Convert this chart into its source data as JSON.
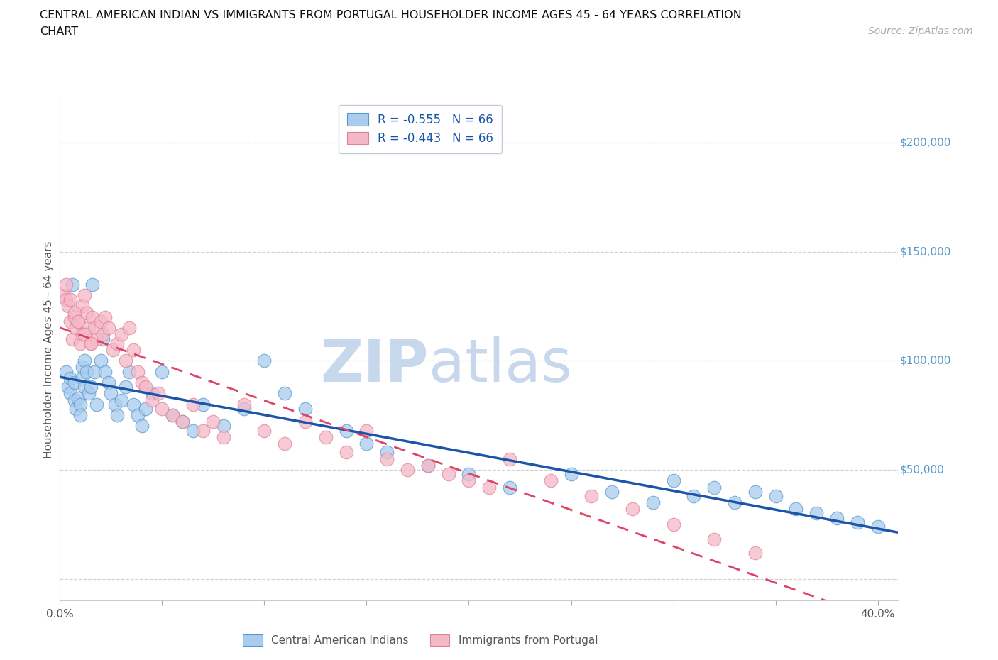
{
  "title_line1": "CENTRAL AMERICAN INDIAN VS IMMIGRANTS FROM PORTUGAL HOUSEHOLDER INCOME AGES 45 - 64 YEARS CORRELATION",
  "title_line2": "CHART",
  "source_text": "Source: ZipAtlas.com",
  "ylabel": "Householder Income Ages 45 - 64 years",
  "xlim": [
    0.0,
    0.41
  ],
  "ylim": [
    -10000,
    220000
  ],
  "yticks": [
    0,
    50000,
    100000,
    150000,
    200000
  ],
  "ytick_labels": [
    "",
    "$50,000",
    "$100,000",
    "$150,000",
    "$200,000"
  ],
  "xtick_vals": [
    0.0,
    0.05,
    0.1,
    0.15,
    0.2,
    0.25,
    0.3,
    0.35,
    0.4
  ],
  "R_blue": -0.555,
  "R_pink": -0.443,
  "N": 66,
  "color_blue_fill": "#aaccee",
  "color_blue_edge": "#5599cc",
  "color_pink_fill": "#f5b8c8",
  "color_pink_edge": "#e08098",
  "color_line_blue": "#1a55aa",
  "color_line_pink": "#dd4466",
  "legend_label_blue": "Central American Indians",
  "legend_label_pink": "Immigrants from Portugal",
  "watermark_text": "ZIPatlas",
  "watermark_color": "#c8d8ec",
  "tick_color": "#5599cc",
  "blue_x": [
    0.003,
    0.004,
    0.005,
    0.005,
    0.006,
    0.007,
    0.007,
    0.008,
    0.009,
    0.01,
    0.01,
    0.011,
    0.011,
    0.012,
    0.012,
    0.013,
    0.014,
    0.015,
    0.016,
    0.017,
    0.018,
    0.02,
    0.021,
    0.022,
    0.024,
    0.025,
    0.027,
    0.028,
    0.03,
    0.032,
    0.034,
    0.036,
    0.038,
    0.04,
    0.042,
    0.045,
    0.05,
    0.055,
    0.06,
    0.065,
    0.07,
    0.08,
    0.09,
    0.1,
    0.11,
    0.12,
    0.14,
    0.15,
    0.16,
    0.18,
    0.2,
    0.22,
    0.25,
    0.27,
    0.29,
    0.3,
    0.31,
    0.32,
    0.33,
    0.34,
    0.35,
    0.36,
    0.37,
    0.38,
    0.39,
    0.4
  ],
  "blue_y": [
    95000,
    88000,
    92000,
    85000,
    135000,
    90000,
    82000,
    78000,
    83000,
    80000,
    75000,
    97000,
    92000,
    88000,
    100000,
    95000,
    85000,
    88000,
    135000,
    95000,
    80000,
    100000,
    110000,
    95000,
    90000,
    85000,
    80000,
    75000,
    82000,
    88000,
    95000,
    80000,
    75000,
    70000,
    78000,
    85000,
    95000,
    75000,
    72000,
    68000,
    80000,
    70000,
    78000,
    100000,
    85000,
    78000,
    68000,
    62000,
    58000,
    52000,
    48000,
    42000,
    48000,
    40000,
    35000,
    45000,
    38000,
    42000,
    35000,
    40000,
    38000,
    32000,
    30000,
    28000,
    26000,
    24000
  ],
  "pink_x": [
    0.002,
    0.003,
    0.004,
    0.005,
    0.006,
    0.007,
    0.008,
    0.009,
    0.01,
    0.011,
    0.011,
    0.012,
    0.013,
    0.014,
    0.015,
    0.016,
    0.017,
    0.018,
    0.02,
    0.021,
    0.022,
    0.024,
    0.026,
    0.028,
    0.03,
    0.032,
    0.034,
    0.036,
    0.038,
    0.04,
    0.042,
    0.045,
    0.048,
    0.05,
    0.055,
    0.06,
    0.065,
    0.07,
    0.075,
    0.08,
    0.09,
    0.1,
    0.11,
    0.12,
    0.13,
    0.14,
    0.15,
    0.16,
    0.17,
    0.18,
    0.19,
    0.2,
    0.21,
    0.22,
    0.24,
    0.26,
    0.28,
    0.3,
    0.32,
    0.34,
    0.003,
    0.005,
    0.007,
    0.009,
    0.012,
    0.015
  ],
  "pink_y": [
    130000,
    128000,
    125000,
    118000,
    110000,
    120000,
    115000,
    118000,
    108000,
    125000,
    112000,
    130000,
    122000,
    115000,
    108000,
    120000,
    115000,
    110000,
    118000,
    112000,
    120000,
    115000,
    105000,
    108000,
    112000,
    100000,
    115000,
    105000,
    95000,
    90000,
    88000,
    82000,
    85000,
    78000,
    75000,
    72000,
    80000,
    68000,
    72000,
    65000,
    80000,
    68000,
    62000,
    72000,
    65000,
    58000,
    68000,
    55000,
    50000,
    52000,
    48000,
    45000,
    42000,
    55000,
    45000,
    38000,
    32000,
    25000,
    18000,
    12000,
    135000,
    128000,
    122000,
    118000,
    112000,
    108000
  ]
}
